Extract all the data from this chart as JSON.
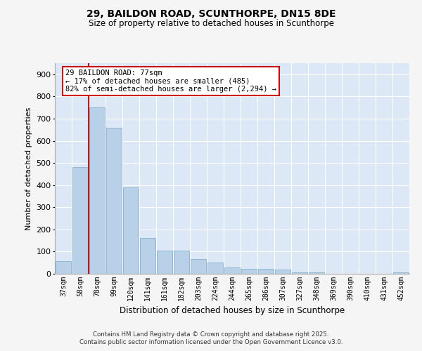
{
  "title_line1": "29, BAILDON ROAD, SCUNTHORPE, DN15 8DE",
  "title_line2": "Size of property relative to detached houses in Scunthorpe",
  "xlabel": "Distribution of detached houses by size in Scunthorpe",
  "ylabel": "Number of detached properties",
  "categories": [
    "37sqm",
    "58sqm",
    "78sqm",
    "99sqm",
    "120sqm",
    "141sqm",
    "161sqm",
    "182sqm",
    "203sqm",
    "224sqm",
    "244sqm",
    "265sqm",
    "286sqm",
    "307sqm",
    "327sqm",
    "348sqm",
    "369sqm",
    "390sqm",
    "410sqm",
    "431sqm",
    "452sqm"
  ],
  "values": [
    58,
    480,
    750,
    660,
    390,
    160,
    105,
    105,
    65,
    50,
    28,
    22,
    22,
    18,
    5,
    5,
    0,
    0,
    0,
    0,
    6
  ],
  "bar_color": "#b8d0e8",
  "bar_edge_color": "#8ab0cc",
  "plot_bg_color": "#dce8f5",
  "grid_color": "#ffffff",
  "fig_bg_color": "#f5f5f5",
  "red_line_index": 2,
  "red_line_color": "#cc0000",
  "annotation_text": "29 BAILDON ROAD: 77sqm\n← 17% of detached houses are smaller (485)\n82% of semi-detached houses are larger (2,294) →",
  "annotation_box_facecolor": "#ffffff",
  "annotation_box_edgecolor": "#cc0000",
  "footer_text": "Contains HM Land Registry data © Crown copyright and database right 2025.\nContains public sector information licensed under the Open Government Licence v3.0.",
  "ylim": [
    0,
    950
  ],
  "yticks": [
    0,
    100,
    200,
    300,
    400,
    500,
    600,
    700,
    800,
    900
  ]
}
